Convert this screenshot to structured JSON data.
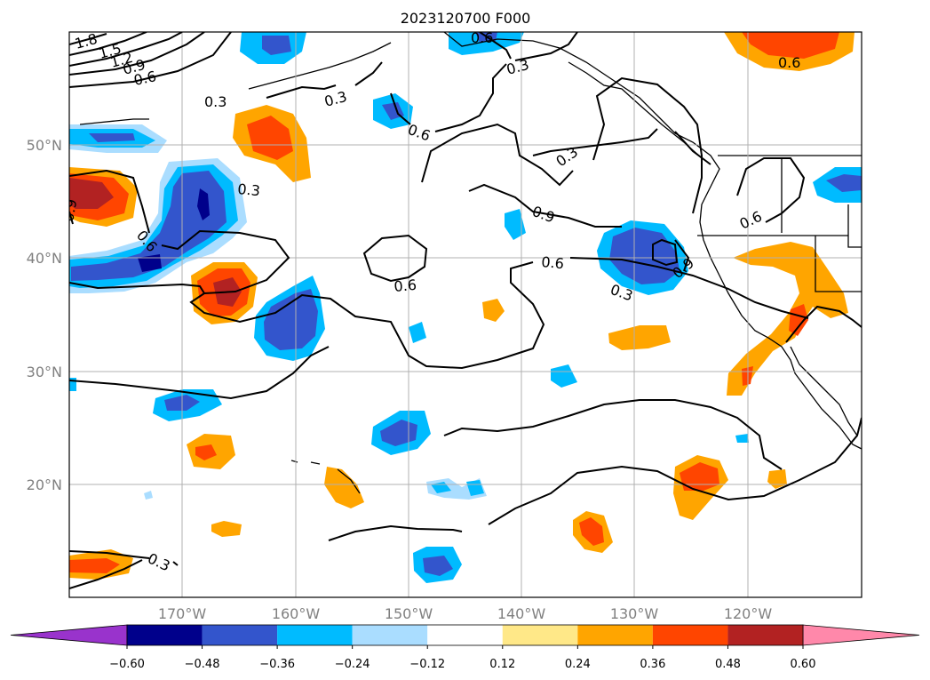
{
  "title": "2023120700 F000",
  "lat_labels": [
    "50°N",
    "40°N",
    "30°N",
    "20°N"
  ],
  "lon_labels": [
    "170°W",
    "160°W",
    "150°W",
    "140°W",
    "130°W",
    "120°W"
  ],
  "colorbar": {
    "colors": [
      "#9933cc",
      "#00008b",
      "#3355cc",
      "#00bbff",
      "#aaddff",
      "#ffffff",
      "#ffe888",
      "#ffa500",
      "#ff4500",
      "#b22222",
      "#ff88aa"
    ],
    "tick_labels": [
      "−0.60",
      "−0.48",
      "−0.36",
      "−0.24",
      "−0.12",
      "0.12",
      "0.24",
      "0.36",
      "0.48",
      "0.60"
    ]
  },
  "contour_labels": [
    "1.8",
    "1.5",
    "1.2",
    "0.9",
    "0.6",
    "0.3",
    "0.3",
    "0.6",
    "0.3",
    "0.3",
    "0.6",
    "0.9",
    "0.6",
    "0.6",
    "0.9",
    "0.3",
    "0.6",
    "0.6",
    "0.3",
    "0.9",
    "0.6",
    "0.3"
  ],
  "chart_data": {
    "type": "heatmap",
    "title": "2023120700 F000",
    "xlabel": "",
    "ylabel": "",
    "x_range": [
      "180°W",
      "110°W"
    ],
    "y_range": [
      "10°N",
      "60°N"
    ],
    "colorbar_levels": [
      -0.6,
      -0.48,
      -0.36,
      -0.24,
      -0.12,
      0.12,
      0.24,
      0.36,
      0.48,
      0.6
    ],
    "contour_levels": [
      0.3,
      0.6,
      0.9,
      1.2,
      1.5,
      1.8
    ],
    "grid": true
  }
}
